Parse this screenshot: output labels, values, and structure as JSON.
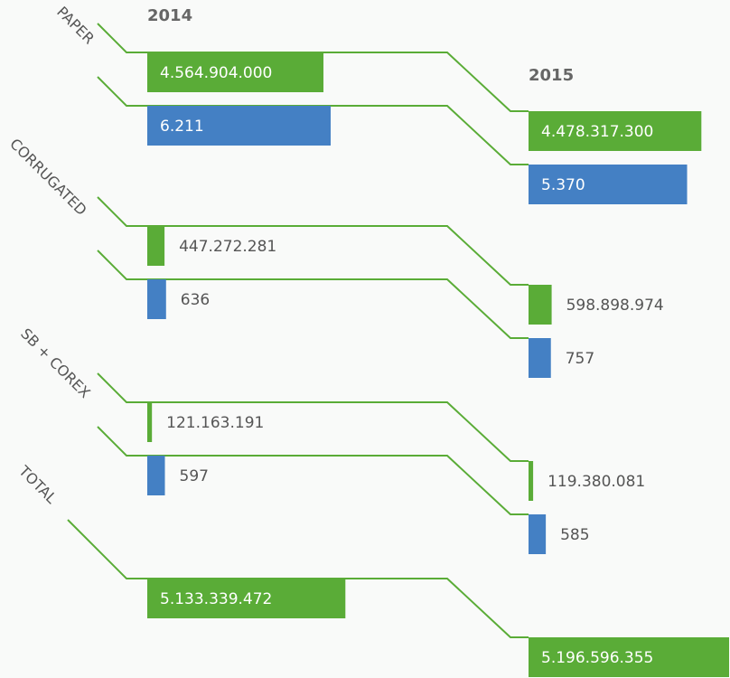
{
  "chart_data": {
    "type": "slope-bar",
    "periods": [
      "2014",
      "2015"
    ],
    "categories": [
      "PAPER",
      "CORRUGATED",
      "SB + COREX",
      "TOTAL"
    ],
    "series": [
      {
        "color": "#5aac37",
        "values": [
          [
            4564904000,
            4478317300
          ],
          [
            447272281,
            598898974
          ],
          [
            121163191,
            119380081
          ],
          [
            5133339472,
            5196596355
          ]
        ],
        "value_labels": [
          [
            "4.564.904.000",
            "4.478.317.300"
          ],
          [
            "447.272.281",
            "598.898.974"
          ],
          [
            "121.163.191",
            "119.380.081"
          ],
          [
            "5.133.339.472",
            "5.196.596.355"
          ]
        ]
      },
      {
        "color": "#4480c4",
        "values": [
          [
            6211,
            5370
          ],
          [
            636,
            757
          ],
          [
            597,
            585
          ],
          [
            null,
            null
          ]
        ],
        "value_labels": [
          [
            "6.211",
            "5.370"
          ],
          [
            "636",
            "757"
          ],
          [
            "597",
            "585"
          ],
          [
            null,
            null
          ]
        ]
      }
    ]
  }
}
